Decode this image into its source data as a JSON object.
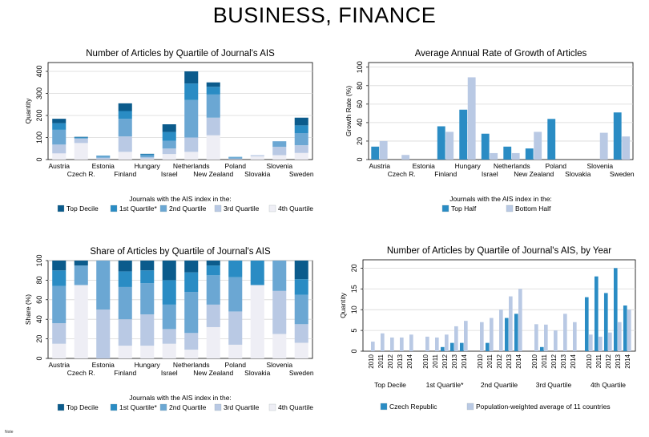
{
  "page": {
    "title": "BUSINESS, FINANCE",
    "footnote": "Note"
  },
  "colors": {
    "top_decile": "#0b5b8c",
    "first_quartile": "#2a8cc4",
    "second_quartile": "#6ba7d3",
    "third_quartile": "#b9c9e4",
    "fourth_quartile": "#eeeef5",
    "top_half": "#2a8cc4",
    "bottom_half": "#b9c9e4",
    "czech": "#2a8cc4",
    "average": "#b9c9e4"
  },
  "chart_data": [
    {
      "id": "articles",
      "type": "bar",
      "stacked": true,
      "title": "Number of Articles by Quartile of Journal's AIS",
      "ylabel": "Quantity",
      "ylim": [
        0,
        440
      ],
      "yticks": [
        0,
        100,
        200,
        300,
        400
      ],
      "categories": [
        "Austria",
        "Czech R.",
        "Estonia",
        "Finland",
        "Hungary",
        "Israel",
        "Netherlands",
        "New Zealand",
        "Poland",
        "Slovakia",
        "Slovenia",
        "Sweden"
      ],
      "legend_title": "Journals with the AIS index in the:",
      "series": [
        {
          "name": "4th Quartile",
          "values": [
            28,
            75,
            0,
            35,
            4,
            25,
            35,
            110,
            1,
            15,
            20,
            30
          ]
        },
        {
          "name": "3rd Quartile",
          "values": [
            40,
            20,
            8,
            70,
            6,
            25,
            65,
            80,
            3,
            5,
            38,
            35
          ]
        },
        {
          "name": "2nd Quartile",
          "values": [
            67,
            2,
            8,
            80,
            10,
            35,
            170,
            105,
            6,
            0,
            25,
            55
          ]
        },
        {
          "name": "1st Quartile*",
          "values": [
            30,
            4,
            2,
            35,
            4,
            40,
            75,
            35,
            2,
            0,
            0,
            35
          ]
        },
        {
          "name": "Top Decile",
          "values": [
            20,
            2,
            0,
            35,
            2,
            35,
            55,
            20,
            0,
            0,
            0,
            35
          ]
        }
      ]
    },
    {
      "id": "growth",
      "type": "bar",
      "title": "Average Annual Rate of Growth of Articles",
      "ylabel": "Growth Rate (%)",
      "ylim": [
        0,
        105
      ],
      "yticks": [
        0,
        20,
        40,
        60,
        80,
        100
      ],
      "categories": [
        "Austria",
        "Czech R.",
        "Estonia",
        "Finland",
        "Hungary",
        "Israel",
        "Netherlands",
        "New Zealand",
        "Poland",
        "Slovakia",
        "Slovenia",
        "Sweden"
      ],
      "legend_title": "Journals with the AIS index in the:",
      "series": [
        {
          "name": "Top Half",
          "values": [
            14,
            null,
            null,
            36,
            54,
            28,
            14,
            12,
            44,
            null,
            null,
            51
          ]
        },
        {
          "name": "Bottom Half",
          "values": [
            20,
            5,
            null,
            30,
            89,
            7,
            7,
            30,
            null,
            null,
            29,
            25
          ]
        }
      ]
    },
    {
      "id": "share",
      "type": "bar",
      "stacked": true,
      "title": "Share of Articles by Quartile of Journal's AIS",
      "ylabel": "Share (%)",
      "ylim": [
        0,
        100
      ],
      "yticks": [
        0,
        20,
        40,
        60,
        80,
        100
      ],
      "categories": [
        "Austria",
        "Czech R.",
        "Estonia",
        "Finland",
        "Hungary",
        "Israel",
        "Netherlands",
        "New Zealand",
        "Poland",
        "Slovakia",
        "Slovenia",
        "Sweden"
      ],
      "legend_title": "Journals with the AIS index in the:",
      "series": [
        {
          "name": "4th Quartile",
          "values": [
            15,
            75,
            0,
            13,
            13,
            15,
            9,
            32,
            14,
            75,
            25,
            16
          ]
        },
        {
          "name": "3rd Quartile",
          "values": [
            21,
            0,
            50,
            27,
            32,
            15,
            17,
            23,
            34,
            0,
            44,
            19
          ]
        },
        {
          "name": "2nd Quartile",
          "values": [
            38,
            20,
            50,
            33,
            32,
            25,
            42,
            30,
            35,
            0,
            31,
            30
          ]
        },
        {
          "name": "1st Quartile*",
          "values": [
            16,
            0,
            0,
            16,
            13,
            25,
            20,
            10,
            17,
            25,
            0,
            16
          ]
        },
        {
          "name": "Top Decile",
          "values": [
            10,
            5,
            0,
            11,
            10,
            20,
            12,
            5,
            0,
            0,
            0,
            19
          ]
        }
      ]
    },
    {
      "id": "by_year",
      "type": "bar",
      "title": "Number of Articles by Quartile of Journal's AIS, by Year",
      "ylabel": "Quantity",
      "ylim": [
        0,
        22
      ],
      "yticks": [
        0,
        5,
        10,
        15,
        20
      ],
      "groups": [
        "Top Decile",
        "1st Quartile*",
        "2nd Quartile",
        "3rd Quartile",
        "4th Quartile"
      ],
      "years": [
        "2010",
        "2011",
        "2012",
        "2013",
        "2014"
      ],
      "series": [
        {
          "name": "Czech Republic",
          "values": [
            [
              0,
              0,
              0,
              0,
              0
            ],
            [
              0,
              0,
              1,
              2,
              2
            ],
            [
              0,
              2,
              0,
              8,
              9
            ],
            [
              0,
              1,
              0,
              0,
              0
            ],
            [
              13,
              18,
              14,
              20,
              11
            ]
          ]
        },
        {
          "name": "Population-weighted average of 11 countries",
          "values": [
            [
              2.3,
              4.3,
              3.3,
              3.3,
              4.0
            ],
            [
              3.5,
              3.3,
              4.0,
              6.0,
              7.3
            ],
            [
              7.0,
              8.0,
              10.0,
              13.2,
              15.0
            ],
            [
              6.5,
              6.4,
              5.0,
              9.0,
              7.0
            ],
            [
              4.0,
              3.5,
              4.5,
              7.0,
              10.0
            ]
          ]
        }
      ]
    }
  ]
}
